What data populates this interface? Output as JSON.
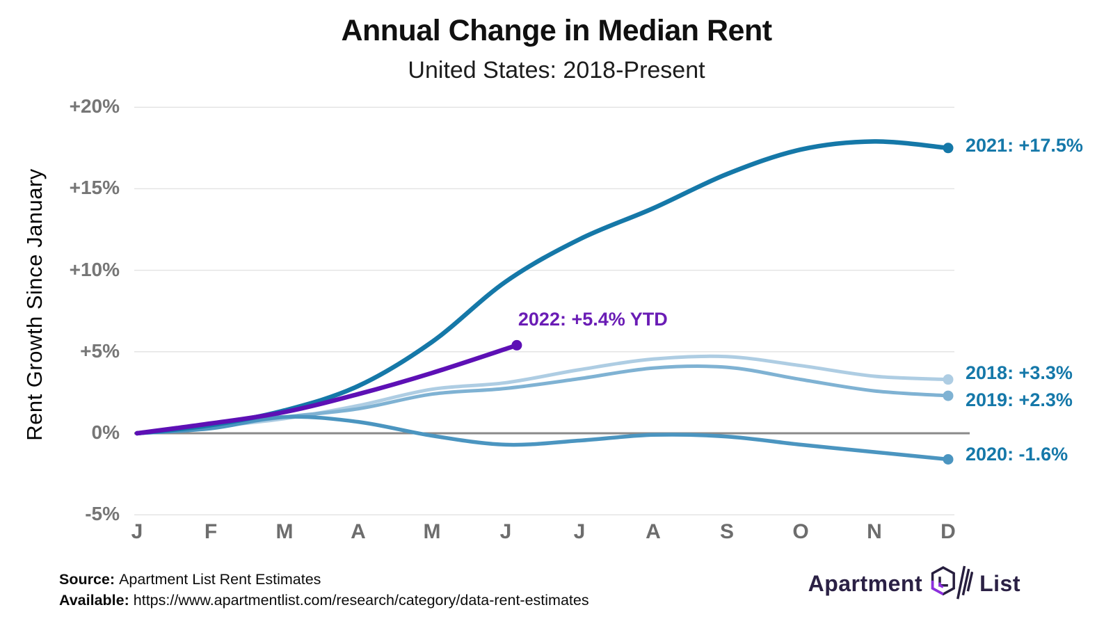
{
  "header": {
    "title": "Annual Change in Median Rent",
    "subtitle": "United States: 2018-Present"
  },
  "chart_data": {
    "type": "line",
    "title": "Annual Change in Median Rent",
    "subtitle": "United States: 2018-Present",
    "xlabel": "",
    "ylabel": "Rent Growth Since January",
    "x_tick_labels": [
      "J",
      "F",
      "M",
      "A",
      "M",
      "J",
      "J",
      "A",
      "S",
      "O",
      "N",
      "D"
    ],
    "y_ticks": [
      20,
      15,
      10,
      5,
      0,
      -5
    ],
    "y_tick_labels": [
      "+20%",
      "+15%",
      "+10%",
      "+5%",
      "0%",
      "-5%"
    ],
    "ylim": [
      -6.5,
      21
    ],
    "grid": true,
    "legend_position": "line-end-labels",
    "series": [
      {
        "name": "2018",
        "label": "2018: +3.3%",
        "final": 3.3,
        "color": "#aecde3",
        "label_color": "#1578a9",
        "line_width": 5,
        "values": [
          0,
          0.4,
          0.9,
          1.7,
          2.7,
          3.1,
          3.9,
          4.55,
          4.7,
          4.15,
          3.5,
          3.3
        ]
      },
      {
        "name": "2019",
        "label": "2019: +2.3%",
        "final": 2.3,
        "color": "#7fb2d3",
        "label_color": "#1578a9",
        "line_width": 5,
        "values": [
          0,
          0.4,
          1.0,
          1.5,
          2.4,
          2.75,
          3.35,
          4.0,
          4.05,
          3.3,
          2.6,
          2.3
        ]
      },
      {
        "name": "2020",
        "label": "2020: -1.6%",
        "final": -1.6,
        "color": "#4b95c0",
        "label_color": "#1578a9",
        "line_width": 5.5,
        "values": [
          0,
          0.3,
          1.0,
          0.7,
          -0.15,
          -0.7,
          -0.45,
          -0.1,
          -0.2,
          -0.7,
          -1.15,
          -1.6
        ]
      },
      {
        "name": "2021",
        "label": "2021: +17.5%",
        "final": 17.5,
        "color": "#1578a8",
        "label_color": "#1578a9",
        "line_width": 6.5,
        "values": [
          0,
          0.5,
          1.4,
          2.9,
          5.6,
          9.3,
          11.9,
          13.8,
          15.9,
          17.4,
          17.9,
          17.5
        ]
      },
      {
        "name": "2022",
        "label": "2022: +5.4% YTD",
        "final": 5.4,
        "color": "#5d10b5",
        "label_color": "#6a1cb5",
        "line_width": 6.5,
        "x": [
          0,
          1,
          2,
          3,
          4,
          5.15
        ],
        "values": [
          0,
          0.6,
          1.3,
          2.4,
          3.7,
          5.4
        ]
      }
    ]
  },
  "footer": {
    "source_label": "Source:",
    "source_text": "Apartment List Rent Estimates",
    "available_label": "Available:",
    "available_text": "https://www.apartmentlist.com/research/category/data-rent-estimates"
  },
  "logo": {
    "word1": "Apartment",
    "word2": "List"
  },
  "colors": {
    "grid_line": "#e4e4e4",
    "zero_line": "#8a8a8a",
    "tick_label": "#767676",
    "accent_blue": "#1578a9",
    "accent_purple": "#6a1cb5"
  }
}
